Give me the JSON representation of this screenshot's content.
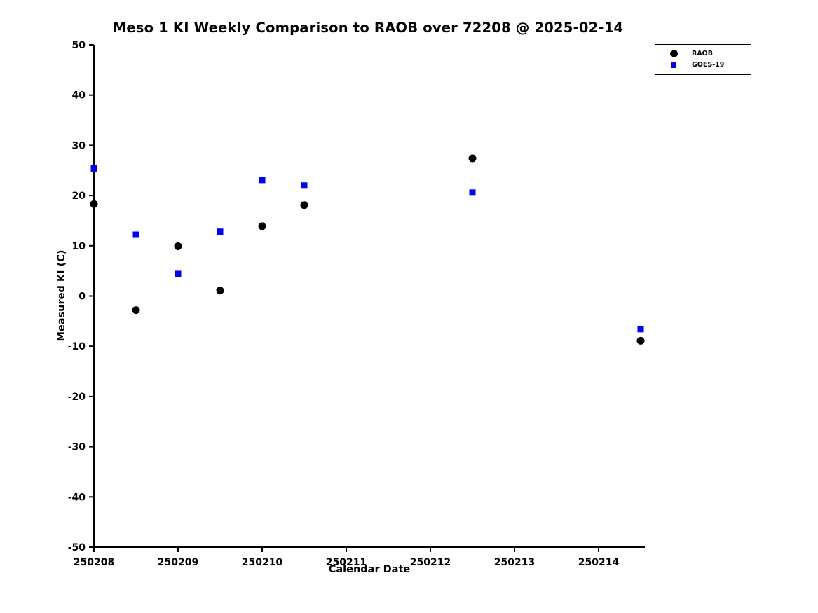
{
  "chart_data": {
    "type": "scatter",
    "title": "Meso 1 KI Weekly Comparison to RAOB over 72208 @ 2025-02-14",
    "xlabel": "Calendar Date",
    "ylabel": "Measured KI (C)",
    "xlim": [
      250208,
      250214.55
    ],
    "ylim": [
      -50,
      50
    ],
    "xticks": [
      250208,
      250209,
      250210,
      250211,
      250212,
      250213,
      250214
    ],
    "yticks": [
      -50,
      -40,
      -30,
      -20,
      -10,
      0,
      10,
      20,
      30,
      40,
      50
    ],
    "grid": false,
    "legend_position": "top-right",
    "axis_color": "#000000",
    "series": [
      {
        "name": "RAOB",
        "marker": "circle",
        "color": "#000000",
        "x": [
          250208,
          250208.5,
          250209,
          250209.5,
          250210,
          250210.5,
          250212.5,
          250214.5
        ],
        "y": [
          18.3,
          -2.8,
          9.9,
          1.1,
          13.9,
          18.1,
          27.4,
          -8.9
        ]
      },
      {
        "name": "GOES-19",
        "marker": "square",
        "color": "#0000ee",
        "x": [
          250208,
          250208.5,
          250209,
          250209.5,
          250210,
          250210.5,
          250212.5,
          250214.5
        ],
        "y": [
          25.4,
          12.2,
          4.4,
          12.8,
          23.1,
          22.0,
          20.6,
          -6.6
        ]
      }
    ]
  }
}
